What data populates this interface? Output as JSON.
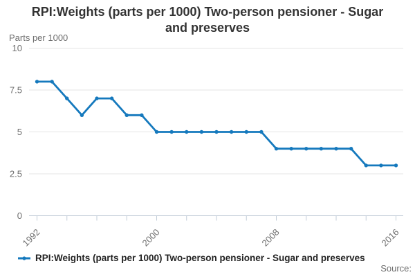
{
  "page": {
    "title": "RPI:Weights (parts per 1000) Two-person pensioner - Sugar and preserves",
    "source_label": "Source:"
  },
  "chart": {
    "y_axis_title": "Parts per 1000",
    "legend_label": "RPI:Weights (parts per 1000) Two-person pensioner - Sugar and preserves",
    "colors": {
      "line": "#1579bd",
      "gridline": "#e4e4e4",
      "axis": "#c2cdd8",
      "tick_label": "#6e6e6e",
      "title_text": "#333333",
      "legend_text": "#222222",
      "source_text": "#6e6e6e"
    }
  },
  "chart_data": {
    "type": "line",
    "title": "RPI:Weights (parts per 1000) Two-person pensioner - Sugar and preserves",
    "xlabel": "",
    "ylabel": "Parts per 1000",
    "series_name": "RPI:Weights (parts per 1000) Two-person pensioner - Sugar and preserves",
    "x": [
      1992,
      1993,
      1994,
      1995,
      1996,
      1997,
      1998,
      1999,
      2000,
      2001,
      2002,
      2003,
      2004,
      2005,
      2006,
      2007,
      2008,
      2009,
      2010,
      2011,
      2012,
      2013,
      2014,
      2015,
      2016
    ],
    "values": [
      8,
      8,
      7,
      6,
      7,
      7,
      6,
      6,
      5,
      5,
      5,
      5,
      5,
      5,
      5,
      5,
      4,
      4,
      4,
      4,
      4,
      4,
      3,
      3,
      3
    ],
    "ylim": [
      0,
      10
    ],
    "yticks": [
      0,
      2.5,
      5,
      7.5,
      10
    ],
    "ytick_labels": [
      "0",
      "2.5",
      "5",
      "7.5",
      "10"
    ],
    "xticks_labeled": [
      1992,
      2000,
      2008,
      2016
    ],
    "xtick_interval": 2,
    "grid": "horizontal",
    "legend_position": "bottom",
    "marker": "circle"
  }
}
